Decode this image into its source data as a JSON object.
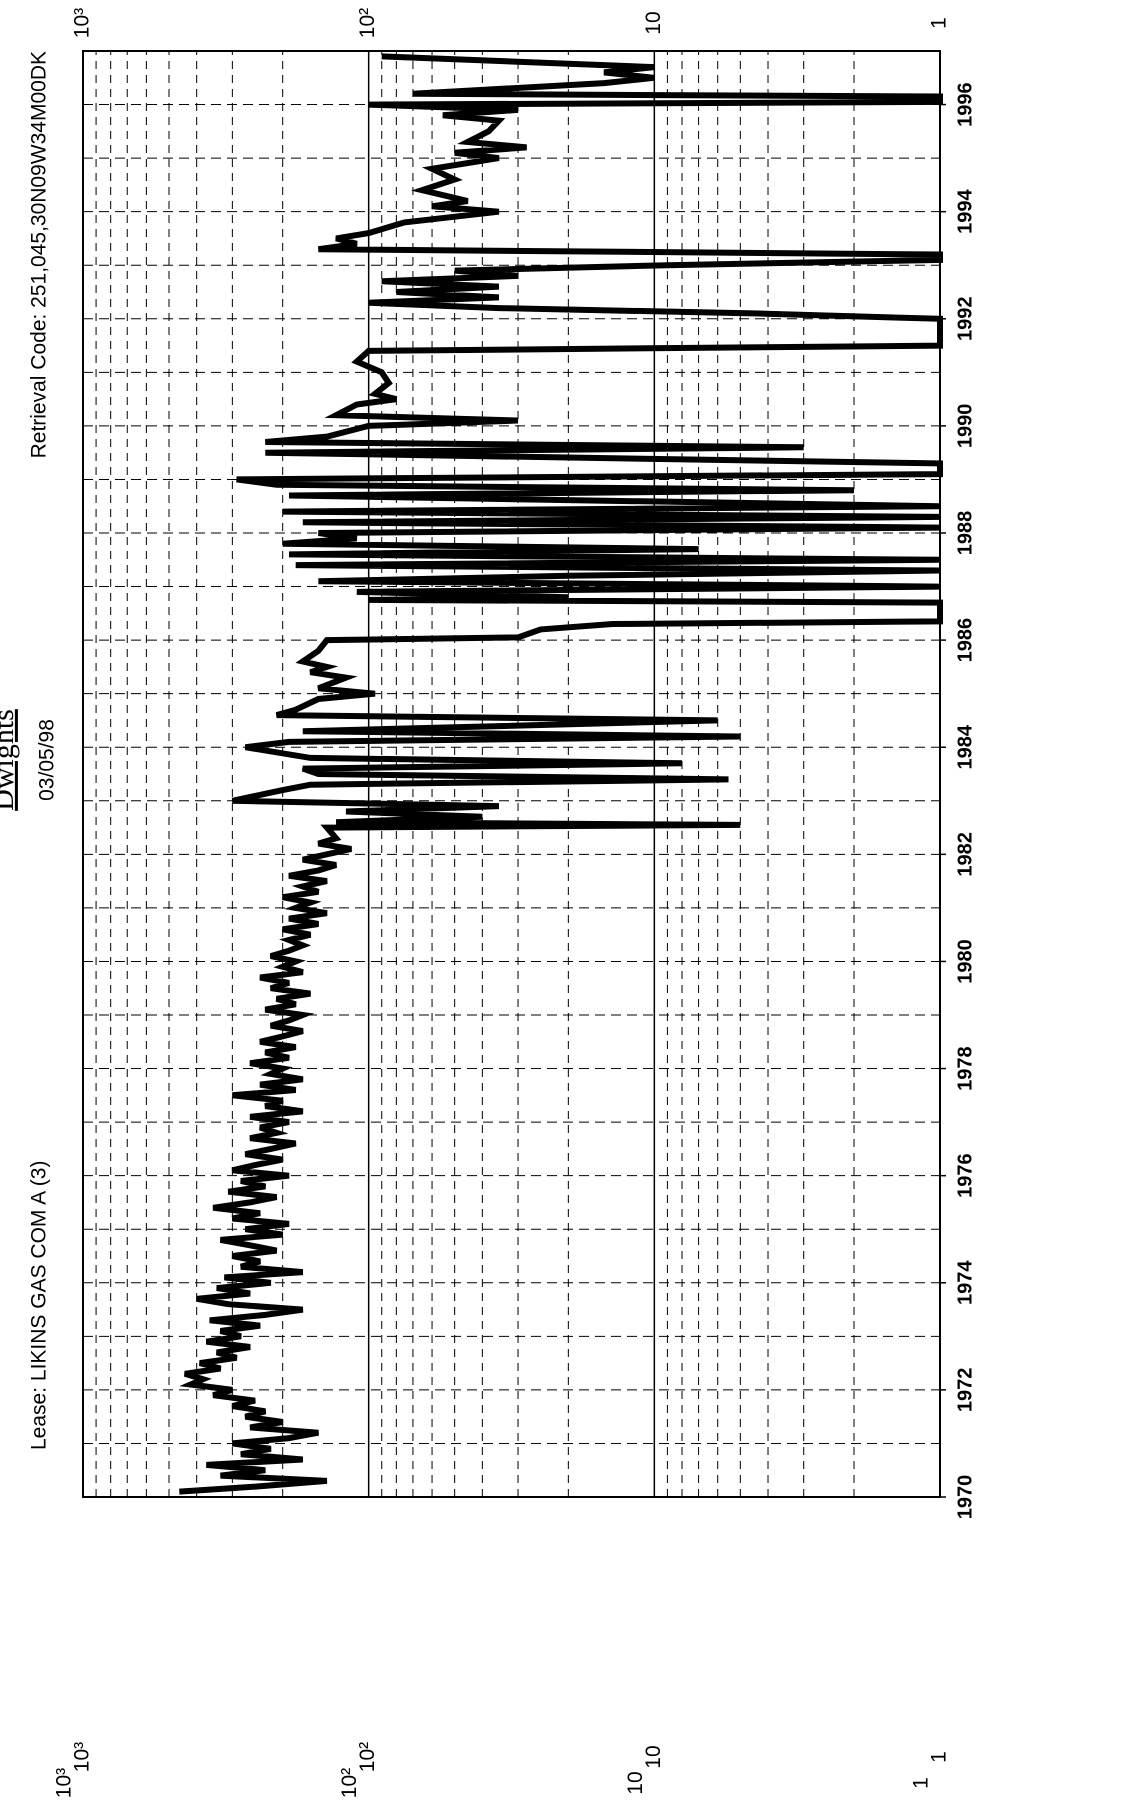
{
  "header": {
    "brand": "Dwights",
    "date": "03/05/98",
    "lease": "Lease: LIKINS GAS COM A  (3)",
    "retrieval": "Retrieval Code: 251,045,30N09W34M00DK"
  },
  "chart_data": {
    "type": "line",
    "log_scale": true,
    "grid": true,
    "minor_grid": true,
    "color": "#000000",
    "xlim": [
      1970,
      1997
    ],
    "xticks": [
      1970,
      1972,
      1974,
      1976,
      1978,
      1980,
      1982,
      1984,
      1986,
      1988,
      1990,
      1992,
      1994,
      1996
    ],
    "xminorticks": [
      1971,
      1973,
      1975,
      1977,
      1979,
      1981,
      1983,
      1985,
      1987,
      1989,
      1991,
      1993,
      1995,
      1997
    ],
    "ylim": [
      1,
      1000
    ],
    "yticks": [
      1,
      10,
      {
        "value": 100,
        "label": "10²"
      },
      {
        "value": 1000,
        "label": "10³"
      }
    ],
    "x": [
      1970.1,
      1970.2,
      1970.3,
      1970.4,
      1970.5,
      1970.6,
      1970.7,
      1970.8,
      1970.9,
      1971.0,
      1971.1,
      1971.2,
      1971.3,
      1971.4,
      1971.5,
      1971.6,
      1971.7,
      1971.8,
      1971.9,
      1972.0,
      1972.1,
      1972.2,
      1972.3,
      1972.4,
      1972.5,
      1972.6,
      1972.7,
      1972.8,
      1972.9,
      1973.0,
      1973.1,
      1973.2,
      1973.3,
      1973.4,
      1973.5,
      1973.6,
      1973.7,
      1973.8,
      1973.9,
      1974.0,
      1974.1,
      1974.2,
      1974.3,
      1974.4,
      1974.5,
      1974.6,
      1974.7,
      1974.8,
      1974.9,
      1975.0,
      1975.1,
      1975.2,
      1975.3,
      1975.4,
      1975.5,
      1975.6,
      1975.7,
      1975.8,
      1975.9,
      1976.0,
      1976.1,
      1976.2,
      1976.3,
      1976.4,
      1976.5,
      1976.6,
      1976.7,
      1976.8,
      1976.9,
      1977.0,
      1977.1,
      1977.2,
      1977.3,
      1977.4,
      1977.5,
      1977.6,
      1977.7,
      1977.8,
      1977.9,
      1978.0,
      1978.1,
      1978.2,
      1978.3,
      1978.4,
      1978.5,
      1978.6,
      1978.7,
      1978.8,
      1978.9,
      1979.0,
      1979.1,
      1979.2,
      1979.3,
      1979.4,
      1979.5,
      1979.6,
      1979.7,
      1979.8,
      1979.9,
      1980.0,
      1980.1,
      1980.2,
      1980.3,
      1980.4,
      1980.5,
      1980.6,
      1980.7,
      1980.8,
      1980.9,
      1981.0,
      1981.1,
      1981.2,
      1981.3,
      1981.4,
      1981.5,
      1981.6,
      1981.7,
      1981.8,
      1981.9,
      1982.0,
      1982.1,
      1982.2,
      1982.3,
      1982.5,
      1982.55,
      1982.6,
      1982.7,
      1982.8,
      1982.9,
      1983.0,
      1983.2,
      1983.3,
      1983.4,
      1983.5,
      1983.6,
      1983.7,
      1983.8,
      1984.0,
      1984.1,
      1984.2,
      1984.3,
      1984.5,
      1984.6,
      1984.7,
      1984.9,
      1985.0,
      1985.1,
      1985.3,
      1985.4,
      1985.5,
      1985.6,
      1985.8,
      1986.0,
      1986.05,
      1986.2,
      1986.3,
      1986.35,
      1986.7,
      1986.75,
      1986.8,
      1986.9,
      1987.0,
      1987.1,
      1987.2,
      1987.3,
      1987.4,
      1987.5,
      1987.6,
      1987.7,
      1987.8,
      1987.9,
      1988.0,
      1988.1,
      1988.2,
      1988.3,
      1988.4,
      1988.5,
      1988.7,
      1988.8,
      1988.9,
      1989.0,
      1989.1,
      1989.3,
      1989.5,
      1989.6,
      1989.7,
      1989.8,
      1990.0,
      1990.1,
      1990.2,
      1990.4,
      1990.5,
      1990.6,
      1990.8,
      1991.0,
      1991.2,
      1991.4,
      1991.5,
      1992.0,
      1992.1,
      1992.2,
      1992.3,
      1992.4,
      1992.5,
      1992.6,
      1992.7,
      1992.8,
      1992.9,
      1993.0,
      1993.1,
      1993.2,
      1993.3,
      1993.4,
      1993.5,
      1993.6,
      1993.8,
      1994.0,
      1994.1,
      1994.2,
      1994.4,
      1994.6,
      1994.8,
      1995.0,
      1995.1,
      1995.2,
      1995.3,
      1995.5,
      1995.7,
      1995.8,
      1995.9,
      1996.0,
      1996.05,
      1996.15,
      1996.2,
      1996.4,
      1996.5,
      1996.6,
      1996.7,
      1996.9
    ],
    "values": [
      460,
      240,
      140,
      330,
      230,
      370,
      170,
      280,
      220,
      300,
      190,
      150,
      260,
      200,
      270,
      230,
      300,
      250,
      350,
      300,
      420,
      380,
      440,
      330,
      390,
      290,
      340,
      260,
      370,
      280,
      330,
      240,
      360,
      230,
      170,
      310,
      400,
      260,
      340,
      220,
      320,
      170,
      280,
      240,
      300,
      210,
      260,
      330,
      200,
      270,
      190,
      300,
      240,
      350,
      260,
      210,
      310,
      230,
      280,
      190,
      300,
      250,
      200,
      270,
      220,
      180,
      260,
      210,
      240,
      190,
      260,
      170,
      230,
      200,
      300,
      180,
      240,
      170,
      220,
      200,
      260,
      190,
      230,
      180,
      240,
      200,
      170,
      220,
      190,
      170,
      230,
      180,
      210,
      160,
      220,
      190,
      240,
      170,
      200,
      180,
      220,
      190,
      170,
      190,
      160,
      200,
      150,
      190,
      140,
      180,
      160,
      200,
      150,
      170,
      140,
      190,
      150,
      130,
      170,
      140,
      115,
      150,
      130,
      140,
      5,
      130,
      40,
      120,
      35,
      300,
      200,
      160,
      5.5,
      150,
      170,
      8,
      160,
      270,
      190,
      5,
      170,
      6,
      210,
      180,
      150,
      95,
      150,
      120,
      160,
      140,
      170,
      150,
      140,
      30,
      25,
      14,
      1,
      1,
      100,
      20,
      110,
      1,
      150,
      20,
      1,
      180,
      1,
      190,
      7,
      200,
      110,
      150,
      1,
      170,
      1,
      200,
      1,
      190,
      2,
      210,
      290,
      1,
      1,
      230,
      3,
      230,
      140,
      100,
      30,
      130,
      110,
      80,
      95,
      85,
      90,
      110,
      100,
      1,
      1,
      4.5,
      35,
      100,
      35,
      80,
      35,
      90,
      30,
      50,
      9,
      1,
      1,
      150,
      110,
      130,
      100,
      75,
      35,
      60,
      45,
      65,
      50,
      60,
      35,
      50,
      28,
      45,
      38,
      35,
      55,
      30,
      100,
      1,
      1,
      70,
      15,
      10,
      15,
      10,
      90
    ]
  }
}
